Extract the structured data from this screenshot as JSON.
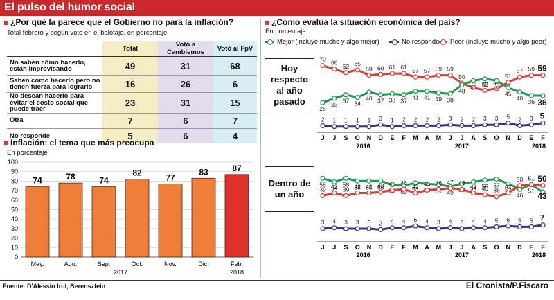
{
  "header": {
    "title": "El pulso del humor social"
  },
  "table_section": {
    "title": "¿Por qué la parece que el Gobierno no para la inflación?",
    "subtitle": "Total febrero y según voto en el balotaje, en porcentaje",
    "columns": [
      "Total",
      "Votó a Cambiemos",
      "Votó al FpV"
    ],
    "rows": [
      {
        "label": "No saben cómo hacerlo, están improvisando",
        "values": [
          "49",
          "31",
          "68"
        ]
      },
      {
        "label": "Saben como hacerlo pero no tienen fuerza para lograrlo",
        "values": [
          "16",
          "26",
          "6"
        ]
      },
      {
        "label": "No desean hacerlo para evitar el costo social que puede traer",
        "values": [
          "23",
          "31",
          "15"
        ]
      },
      {
        "label": "Otra",
        "values": [
          "7",
          "6",
          "7"
        ]
      },
      {
        "label": "No responde",
        "values": [
          "5",
          "6",
          "4"
        ]
      }
    ]
  },
  "chart_data": [
    {
      "type": "bar",
      "title": "Inflación: el tema que más preocupa",
      "ylabel": "En porcentaje",
      "categories": [
        "May.",
        "Ago.",
        "Sep.",
        "Oct.",
        "Nov.",
        "Dic.",
        "Feb."
      ],
      "year_labels": [
        "2017",
        "2018"
      ],
      "values": [
        74,
        78,
        74,
        82,
        77,
        83,
        87
      ],
      "ylim": [
        0,
        100
      ],
      "yticks": [
        0,
        10,
        20,
        30,
        40,
        50,
        60,
        70,
        80,
        90,
        100
      ],
      "bar_color": "#ee7e3a",
      "highlight_color": "#e0302c",
      "highlight_index": 6
    },
    {
      "type": "line",
      "title": "¿Cómo evalúa la situación económica del país?",
      "subtitle": "En porcentaje",
      "legend": [
        "Mejor (incluye mucho y algo mejor)",
        "No responde",
        "Peor (incluye mucho y algo peor)"
      ],
      "colors": {
        "mejor": "#1d9a4b",
        "nr": "#3c2f88",
        "peor": "#df3a32"
      },
      "x": [
        "J",
        "J",
        "S",
        "O",
        "N",
        "D",
        "E",
        "F",
        "M",
        "A",
        "M",
        "J",
        "J",
        "A",
        "S",
        "O",
        "N",
        "D",
        "E",
        "F"
      ],
      "year_labels": [
        "2016",
        "2017",
        "2018"
      ],
      "panels": [
        {
          "label": "Hoy respecto al año pasado",
          "series": [
            {
              "name": "Peor",
              "values": [
                70,
                66,
                62,
                65,
                59,
                60,
                61,
                61,
                57,
                57,
                59,
                59,
                50,
                45,
                42,
                44,
                51,
                57,
                59,
                null
              ],
              "last": 59
            },
            {
              "name": "Mejor",
              "values": [
                28,
                33,
                37,
                34,
                40,
                37,
                38,
                37,
                41,
                41,
                39,
                38,
                48,
                53,
                55,
                53,
                45,
                40,
                36,
                null
              ],
              "last": 36
            },
            {
              "name": "No responde",
              "values": [
                2,
                1,
                1,
                1,
                1,
                3,
                1,
                2,
                2,
                2,
                2,
                3,
                2,
                2,
                3,
                3,
                5,
                2,
                3,
                5
              ],
              "last": 5
            }
          ]
        },
        {
          "label": "Dentro de un año",
          "series": [
            {
              "name": "Mejor",
              "values": [
                58,
                54,
                58,
                55,
                55,
                55,
                51,
                50,
                53,
                52,
                51,
                49,
                52,
                54,
                56,
                57,
                52,
                46,
                51,
                43
              ],
              "last": 43
            },
            {
              "name": "Peor",
              "values": [
                39,
                42,
                39,
                42,
                42,
                43,
                45,
                46,
                42,
                45,
                46,
                47,
                46,
                42,
                40,
                38,
                42,
                50,
                51,
                50
              ],
              "last": 50
            },
            {
              "name": "No responde",
              "values": [
                3,
                4,
                3,
                3,
                3,
                2,
                4,
                4,
                6,
                4,
                3,
                4,
                3,
                4,
                4,
                5,
                6,
                5,
                5,
                7
              ],
              "last": 7
            }
          ]
        }
      ]
    }
  ],
  "footer": {
    "source": "Fuente: D'Alessio Irol, Berensztein",
    "credit": "El Cronista/P.Fiscaro"
  }
}
